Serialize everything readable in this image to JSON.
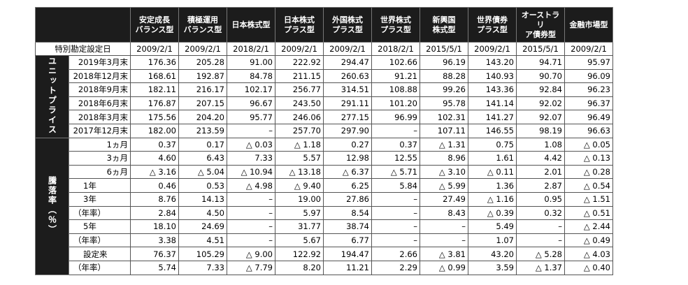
{
  "setting_label": "特別勘定設定日",
  "columns": [
    "安定成長\nバランス型",
    "積極運用\nバランス型",
    "日本株式型",
    "日本株式\nプラス型",
    "外国株式\nプラス型",
    "世界株式\nプラス型",
    "新興国\n株式型",
    "世界債券\nプラス型",
    "オーストラリ\nア債券型",
    "金融市場型"
  ],
  "setting_dates": [
    "2009/2/1",
    "2009/2/1",
    "2018/2/1",
    "2009/2/1",
    "2009/2/1",
    "2018/2/1",
    "2015/5/1",
    "2009/2/1",
    "2015/5/1",
    "2009/2/1"
  ],
  "unit_price": {
    "category": "ユニットプライス",
    "rows": [
      {
        "label": "2019年3月末",
        "values": [
          "176.36",
          "205.28",
          "91.00",
          "222.92",
          "294.47",
          "102.66",
          "96.19",
          "143.20",
          "94.71",
          "95.97"
        ]
      },
      {
        "label": "2018年12月末",
        "values": [
          "168.61",
          "192.87",
          "84.78",
          "211.15",
          "260.63",
          "91.21",
          "88.28",
          "140.93",
          "90.70",
          "96.09"
        ]
      },
      {
        "label": "2018年9月末",
        "values": [
          "182.11",
          "216.17",
          "102.17",
          "256.77",
          "314.51",
          "108.88",
          "99.26",
          "143.36",
          "92.84",
          "96.23"
        ]
      },
      {
        "label": "2018年6月末",
        "values": [
          "176.87",
          "207.15",
          "96.67",
          "243.50",
          "291.11",
          "101.20",
          "95.78",
          "141.14",
          "92.02",
          "96.37"
        ]
      },
      {
        "label": "2018年3月末",
        "values": [
          "175.56",
          "204.20",
          "95.77",
          "246.06",
          "277.15",
          "96.99",
          "102.31",
          "141.27",
          "92.07",
          "96.49"
        ]
      },
      {
        "label": "2017年12月末",
        "values": [
          "182.00",
          "213.59",
          "–",
          "257.70",
          "297.90",
          "–",
          "107.11",
          "146.55",
          "98.19",
          "96.63"
        ]
      }
    ]
  },
  "rate": {
    "category": "騰落率（％）",
    "rows": [
      {
        "label": "1ヵ月",
        "style": "rowlabel",
        "values": [
          "0.37",
          "0.17",
          "△ 0.03",
          "△ 1.18",
          "0.27",
          "0.37",
          "△ 1.31",
          "0.75",
          "1.08",
          "△ 0.05"
        ]
      },
      {
        "label": "3ヵ月",
        "style": "rowlabel",
        "values": [
          "4.60",
          "6.43",
          "7.33",
          "5.57",
          "12.98",
          "12.55",
          "8.96",
          "1.61",
          "4.42",
          "△ 0.13"
        ]
      },
      {
        "label": "6ヵ月",
        "style": "rowlabel",
        "values": [
          "△ 3.16",
          "△ 5.04",
          "△ 10.94",
          "△ 13.18",
          "△ 6.37",
          "△ 5.71",
          "△ 3.10",
          "△ 0.11",
          "2.01",
          "△ 0.28"
        ]
      },
      {
        "label": "1年",
        "style": "sublabel2",
        "values": [
          "0.46",
          "0.53",
          "△ 4.98",
          "△ 9.40",
          "6.25",
          "5.84",
          "△ 5.99",
          "1.36",
          "2.87",
          "△ 0.54"
        ]
      },
      {
        "label": "3年",
        "style": "sublabel2",
        "values": [
          "8.76",
          "14.13",
          "–",
          "19.00",
          "27.86",
          "–",
          "27.49",
          "△ 1.16",
          "0.95",
          "△ 1.51"
        ]
      },
      {
        "label": "（年率）",
        "style": "sublabel",
        "values": [
          "2.84",
          "4.50",
          "–",
          "5.97",
          "8.54",
          "–",
          "8.43",
          "△ 0.39",
          "0.32",
          "△ 0.51"
        ]
      },
      {
        "label": "5年",
        "style": "sublabel2",
        "values": [
          "18.10",
          "24.69",
          "–",
          "31.77",
          "38.74",
          "–",
          "–",
          "5.49",
          "–",
          "△ 2.44"
        ]
      },
      {
        "label": "（年率）",
        "style": "sublabel",
        "values": [
          "3.38",
          "4.51",
          "–",
          "5.67",
          "6.77",
          "–",
          "–",
          "1.07",
          "–",
          "△ 0.49"
        ]
      },
      {
        "label": "設定来",
        "style": "sublabel2",
        "values": [
          "76.37",
          "105.29",
          "△ 9.00",
          "122.92",
          "194.47",
          "2.66",
          "△ 3.81",
          "43.20",
          "△ 5.28",
          "△ 4.03"
        ]
      },
      {
        "label": "（年率）",
        "style": "sublabel",
        "values": [
          "5.74",
          "7.33",
          "△ 7.79",
          "8.20",
          "11.21",
          "2.29",
          "△ 0.99",
          "3.59",
          "△ 1.37",
          "△ 0.40"
        ]
      }
    ]
  }
}
